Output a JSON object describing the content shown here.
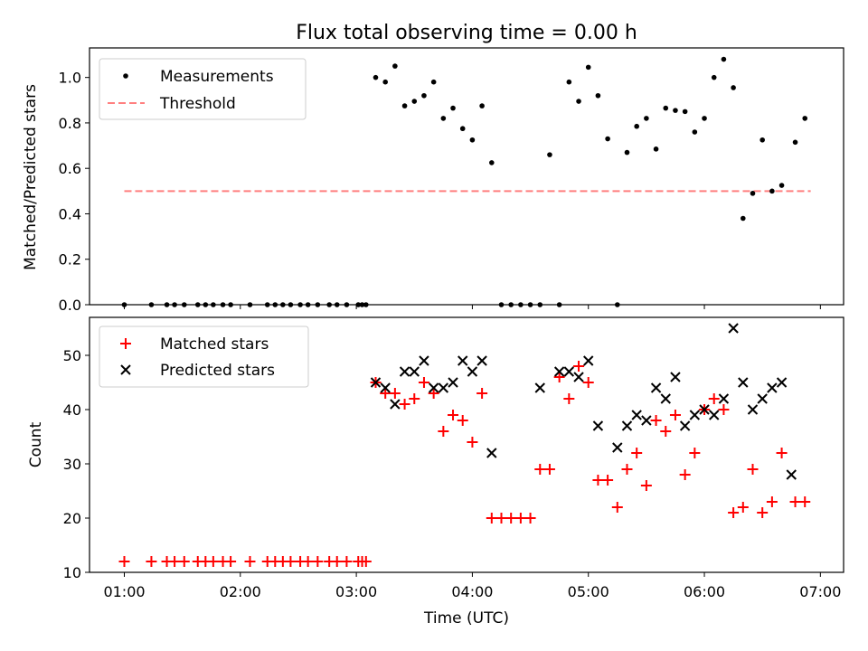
{
  "chart_data": [
    {
      "type": "scatter",
      "title": "Flux total observing time = 0.00 h",
      "xlabel": "",
      "ylabel": "Matched/Predicted stars",
      "xlim": [
        "00:42",
        "07:12"
      ],
      "ylim": [
        0,
        1.13
      ],
      "yticks": [
        "0.0",
        "0.2",
        "0.4",
        "0.6",
        "0.8",
        "1.0"
      ],
      "grid": false,
      "legend": "top-left",
      "series": [
        {
          "name": "Measurements",
          "marker": "dot",
          "color": "#000000",
          "x": [
            "01:00",
            "01:14",
            "01:22",
            "01:26",
            "01:31",
            "01:38",
            "01:42",
            "01:46",
            "01:51",
            "01:55",
            "02:05",
            "02:14",
            "02:18",
            "02:22",
            "02:26",
            "02:31",
            "02:35",
            "02:40",
            "02:46",
            "02:50",
            "02:55",
            "03:01",
            "03:03",
            "03:05",
            "03:10",
            "03:15",
            "03:20",
            "03:25",
            "03:30",
            "03:35",
            "03:40",
            "03:45",
            "03:50",
            "03:55",
            "04:00",
            "04:05",
            "04:10",
            "04:15",
            "04:20",
            "04:25",
            "04:30",
            "04:35",
            "04:40",
            "04:45",
            "04:50",
            "04:55",
            "05:00",
            "05:05",
            "05:10",
            "05:15",
            "05:20",
            "05:25",
            "05:30",
            "05:35",
            "05:40",
            "05:45",
            "05:50",
            "05:55",
            "06:00",
            "06:05",
            "06:10",
            "06:15",
            "06:20",
            "06:25",
            "06:30",
            "06:35",
            "06:40",
            "06:47",
            "06:52"
          ],
          "y": [
            0,
            0,
            0,
            0,
            0,
            0,
            0,
            0,
            0,
            0,
            0,
            0,
            0,
            0,
            0,
            0,
            0,
            0,
            0,
            0,
            0,
            0,
            0,
            0,
            1.0,
            0.98,
            1.05,
            0.875,
            0.895,
            0.92,
            0.98,
            0.82,
            0.865,
            0.775,
            0.725,
            0.875,
            0.625,
            0,
            0,
            0,
            0,
            0,
            0.66,
            0,
            0.98,
            0.895,
            1.045,
            0.92,
            0.73,
            0,
            0.67,
            0.785,
            0.82,
            0.685,
            0.865,
            0.855,
            0.85,
            0.76,
            0.82,
            1.0,
            1.08,
            0.955,
            0.38,
            0.49,
            0.725,
            0.5,
            0.525,
            0.715,
            0.82
          ]
        },
        {
          "name": "Threshold",
          "style": "dashed",
          "color": "#ff7f7f",
          "x": [
            "01:00",
            "06:55"
          ],
          "y": [
            0.5,
            0.5
          ]
        }
      ]
    },
    {
      "type": "scatter",
      "title": "",
      "xlabel": "Time (UTC)",
      "ylabel": "Count",
      "xlim": [
        "00:42",
        "07:12"
      ],
      "ylim": [
        10,
        57
      ],
      "yticks": [
        "10",
        "20",
        "30",
        "40",
        "50"
      ],
      "xticks": [
        "01:00",
        "02:00",
        "03:00",
        "04:00",
        "05:00",
        "06:00",
        "07:00"
      ],
      "grid": false,
      "legend": "top-left",
      "series": [
        {
          "name": "Matched stars",
          "marker": "plus",
          "color": "#ff0000",
          "x": [
            "01:00",
            "01:14",
            "01:22",
            "01:26",
            "01:31",
            "01:38",
            "01:42",
            "01:46",
            "01:51",
            "01:55",
            "02:05",
            "02:14",
            "02:18",
            "02:22",
            "02:26",
            "02:31",
            "02:35",
            "02:40",
            "02:46",
            "02:50",
            "02:55",
            "03:01",
            "03:03",
            "03:05",
            "03:10",
            "03:15",
            "03:20",
            "03:25",
            "03:30",
            "03:35",
            "03:40",
            "03:45",
            "03:50",
            "03:55",
            "04:00",
            "04:05",
            "04:10",
            "04:15",
            "04:20",
            "04:25",
            "04:30",
            "04:35",
            "04:40",
            "04:45",
            "04:50",
            "04:55",
            "05:00",
            "05:05",
            "05:10",
            "05:15",
            "05:20",
            "05:25",
            "05:30",
            "05:35",
            "05:40",
            "05:45",
            "05:50",
            "05:55",
            "06:00",
            "06:05",
            "06:10",
            "06:15",
            "06:20",
            "06:25",
            "06:30",
            "06:35",
            "06:40",
            "06:47",
            "06:52"
          ],
          "y": [
            12,
            12,
            12,
            12,
            12,
            12,
            12,
            12,
            12,
            12,
            12,
            12,
            12,
            12,
            12,
            12,
            12,
            12,
            12,
            12,
            12,
            12,
            12,
            12,
            45,
            43,
            43,
            41,
            42,
            45,
            43,
            36,
            39,
            38,
            34,
            43,
            20,
            20,
            20,
            20,
            20,
            29,
            29,
            46,
            42,
            48,
            45,
            27,
            27,
            22,
            29,
            32,
            26,
            38,
            36,
            39,
            28,
            32,
            40,
            42,
            40,
            21,
            22,
            29,
            21,
            23,
            32,
            23,
            23
          ]
        },
        {
          "name": "Predicted stars",
          "marker": "x",
          "color": "#000000",
          "x": [
            "03:10",
            "03:15",
            "03:20",
            "03:25",
            "03:30",
            "03:35",
            "03:40",
            "03:45",
            "03:50",
            "03:55",
            "04:00",
            "04:05",
            "04:10",
            "04:35",
            "04:45",
            "04:50",
            "04:55",
            "05:00",
            "05:05",
            "05:15",
            "05:20",
            "05:25",
            "05:30",
            "05:35",
            "05:40",
            "05:45",
            "05:50",
            "05:55",
            "06:00",
            "06:05",
            "06:10",
            "06:15",
            "06:20",
            "06:25",
            "06:30",
            "06:35",
            "06:40",
            "06:45"
          ],
          "y": [
            45,
            44,
            41,
            47,
            47,
            49,
            44,
            44,
            45,
            49,
            47,
            49,
            32,
            44,
            47,
            47,
            46,
            49,
            37,
            33,
            37,
            39,
            38,
            44,
            42,
            46,
            37,
            39,
            40,
            39,
            42,
            55,
            45,
            40,
            42,
            44,
            45,
            28
          ]
        }
      ]
    }
  ]
}
